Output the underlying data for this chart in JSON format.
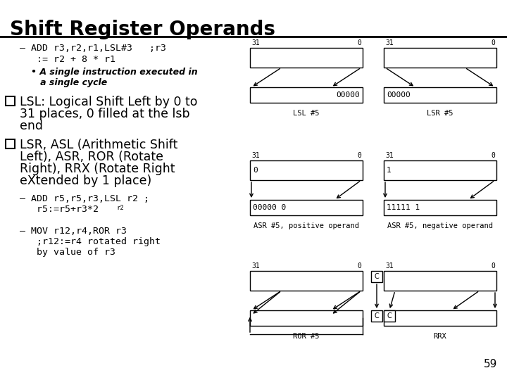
{
  "title": "Shift Register Operands",
  "bg": "#ffffff",
  "title_fs": 20,
  "page_num": "59",
  "line1": "– ADD r3,r2,r1,LSL#3   ;r3",
  "line2": "   := r2 + 8 * r1",
  "bullet1a": "• A single instruction executed in",
  "bullet1b": "   a single cycle",
  "lsl_text1": "LSL: Logical Shift Left by 0 to",
  "lsl_text2": "31 places, 0 filled at the lsb",
  "lsl_text3": "end",
  "lsr_text1": "LSR, ASL (Arithmetic Shift",
  "lsr_text2": "Left), ASR, ROR (Rotate",
  "lsr_text3": "Right), RRX (Rotate Right",
  "lsr_text4": "eXtended by 1 place)",
  "add_line1": "– ADD r5,r5,r3,LSL r2 ;",
  "add_line2": "   r5:=r5+r3*2",
  "add_sup": "r2",
  "mov_line1": "– MOV r12,r4,ROR r3",
  "mov_line2": "   ;r12:=r4 rotated right",
  "mov_line3": "   by value of r3",
  "diagrams": [
    {
      "label": "LSL #5",
      "col": 0,
      "row": 0,
      "top_text": "",
      "bot_text": "00000",
      "type": "lsl"
    },
    {
      "label": "LSR #5",
      "col": 1,
      "row": 0,
      "top_text": "",
      "bot_text": "00000",
      "type": "lsr"
    },
    {
      "label": "ASR #5, positive operand",
      "col": 0,
      "row": 1,
      "top_text": "0",
      "bot_text": "00000 0",
      "type": "asr_pos"
    },
    {
      "label": "ASR #5, negative operand",
      "col": 1,
      "row": 1,
      "top_text": "1",
      "bot_text": "11111 1",
      "type": "asr_neg"
    },
    {
      "label": "ROR #5",
      "col": 0,
      "row": 2,
      "top_text": "",
      "bot_text": "",
      "type": "ror"
    },
    {
      "label": "RRX",
      "col": 1,
      "row": 2,
      "top_text": "",
      "bot_text": "",
      "type": "rrx"
    }
  ]
}
